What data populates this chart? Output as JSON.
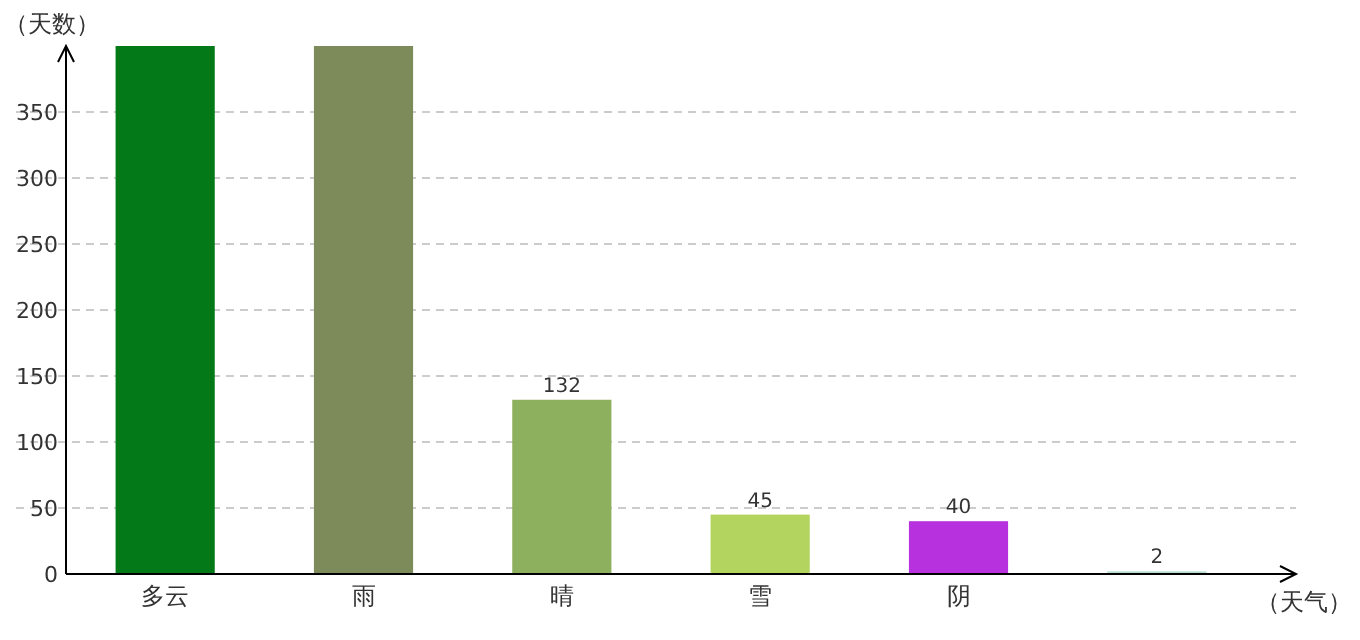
{
  "chart_data": {
    "type": "bar",
    "xlabel": "（天气）",
    "ylabel": "（天数）",
    "categories": [
      "多云",
      "雨",
      "晴",
      "雪",
      "阴",
      null
    ],
    "values": [
      400,
      400,
      132,
      45,
      40,
      2
    ],
    "colors": [
      "#037a17",
      "#7d8a5a",
      "#8db05e",
      "#b3d560",
      "#b831de",
      "#b6dcd2"
    ],
    "value_labels": [
      null,
      null,
      "132",
      "45",
      "40",
      "2"
    ],
    "ylim": [
      0,
      400
    ],
    "yticks": [
      0,
      50,
      100,
      150,
      200,
      250,
      300,
      350
    ],
    "grid": "y"
  }
}
